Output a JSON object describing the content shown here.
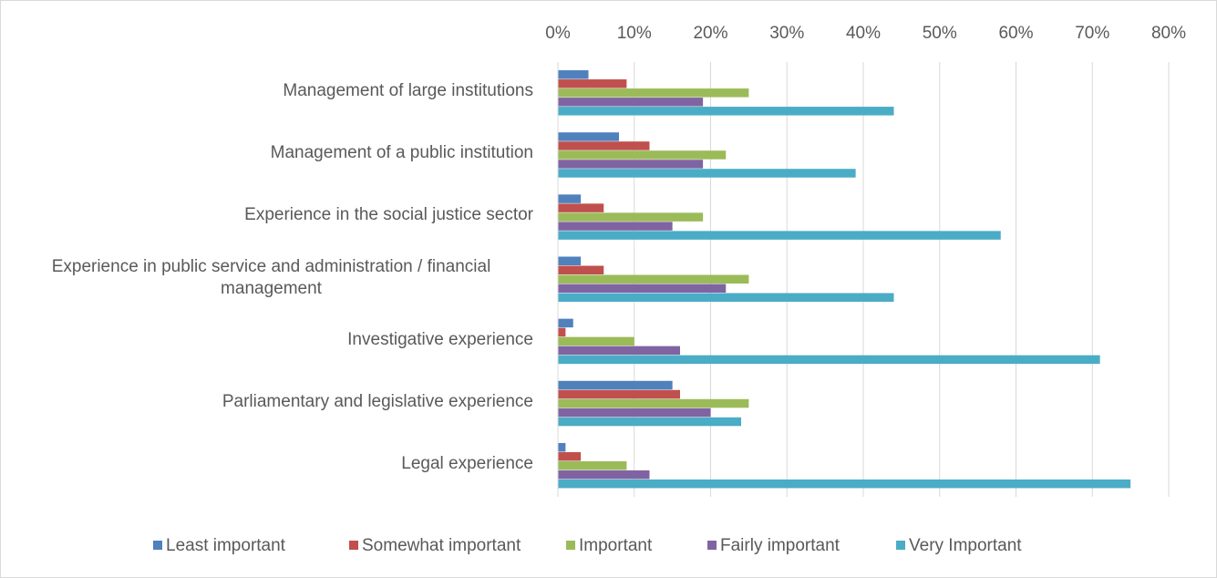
{
  "chart_data": {
    "type": "bar",
    "orientation": "horizontal",
    "categories": [
      "Management of large institutions",
      "Management of a public institution",
      "Experience in the social justice sector",
      "Experience in public service and administration / financial management",
      "Investigative experience",
      "Parliamentary and legislative experience",
      "Legal experience"
    ],
    "series": [
      {
        "name": "Least important",
        "color": "#4f81bd",
        "values": [
          4,
          8,
          3,
          3,
          2,
          15,
          1
        ]
      },
      {
        "name": "Somewhat important",
        "color": "#c0504d",
        "values": [
          9,
          12,
          6,
          6,
          1,
          16,
          3
        ]
      },
      {
        "name": "Important",
        "color": "#9bbb59",
        "values": [
          25,
          22,
          19,
          25,
          10,
          25,
          9
        ]
      },
      {
        "name": "Fairly important",
        "color": "#8064a2",
        "values": [
          19,
          19,
          15,
          22,
          16,
          20,
          12
        ]
      },
      {
        "name": "Very Important",
        "color": "#4bacc6",
        "values": [
          44,
          39,
          58,
          44,
          71,
          24,
          75
        ]
      }
    ],
    "xlim": [
      0,
      80
    ],
    "xticks": [
      {
        "value": 0,
        "label": "0%"
      },
      {
        "value": 10,
        "label": "10%"
      },
      {
        "value": 20,
        "label": "20%"
      },
      {
        "value": 30,
        "label": "30%"
      },
      {
        "value": 40,
        "label": "40%"
      },
      {
        "value": 50,
        "label": "50%"
      },
      {
        "value": 60,
        "label": "60%"
      },
      {
        "value": 70,
        "label": "70%"
      },
      {
        "value": 80,
        "label": "80%"
      }
    ],
    "grid": true,
    "legend": "bottom"
  }
}
